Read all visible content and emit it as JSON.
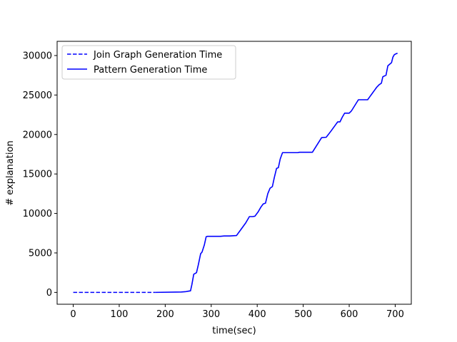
{
  "chart_data": {
    "type": "line",
    "title": "",
    "xlabel": "time(sec)",
    "ylabel": "# explanation",
    "xlim": [
      -35,
      735
    ],
    "ylim": [
      -1500,
      31800
    ],
    "xticks": [
      0,
      100,
      200,
      300,
      400,
      500,
      600,
      700
    ],
    "yticks": [
      0,
      5000,
      10000,
      15000,
      20000,
      25000,
      30000
    ],
    "xtick_labels": [
      "0",
      "100",
      "200",
      "300",
      "400",
      "500",
      "600",
      "700"
    ],
    "ytick_labels": [
      "0",
      "5000",
      "10000",
      "15000",
      "20000",
      "25000",
      "30000"
    ],
    "grid": false,
    "legend_position": "top-left",
    "color": "#0000ff",
    "series": [
      {
        "name": "Join Graph Generation Time",
        "style": "dashed",
        "x": [
          0,
          178
        ],
        "y": [
          0,
          0
        ]
      },
      {
        "name": "Pattern Generation Time",
        "style": "solid",
        "x": [
          178,
          235,
          245,
          250,
          255,
          258,
          262,
          268,
          272,
          277,
          280,
          285,
          289,
          292,
          320,
          328,
          340,
          355,
          365,
          375,
          383,
          390,
          395,
          402,
          408,
          413,
          418,
          423,
          428,
          433,
          437,
          442,
          446,
          450,
          455,
          460,
          480,
          488,
          492,
          500,
          520,
          540,
          550,
          560,
          570,
          575,
          580,
          585,
          590,
          600,
          605,
          620,
          630,
          640,
          645,
          650,
          655,
          660,
          665,
          670,
          673,
          676,
          680,
          684,
          688,
          692,
          695,
          698,
          701,
          705
        ],
        "y": [
          0,
          50,
          100,
          150,
          200,
          1000,
          2300,
          2500,
          3500,
          4900,
          5100,
          6000,
          7050,
          7100,
          7100,
          7150,
          7150,
          7200,
          8000,
          8800,
          9600,
          9600,
          9650,
          10200,
          10800,
          11200,
          11300,
          12500,
          13200,
          13400,
          14500,
          15700,
          15800,
          16900,
          17700,
          17700,
          17700,
          17700,
          17750,
          17750,
          17750,
          19600,
          19650,
          20400,
          21200,
          21600,
          21600,
          22200,
          22700,
          22700,
          23000,
          24400,
          24400,
          24400,
          24800,
          25200,
          25600,
          26000,
          26300,
          26500,
          27300,
          27400,
          27500,
          28700,
          28900,
          29100,
          29800,
          30100,
          30200,
          30300
        ]
      }
    ]
  }
}
